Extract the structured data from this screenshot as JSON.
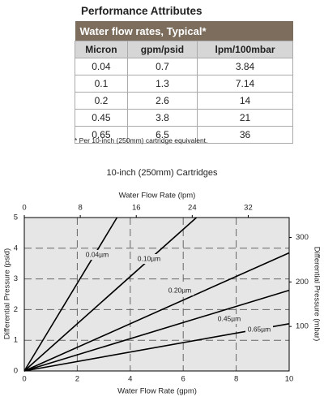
{
  "header": {
    "title": "Performance Attributes"
  },
  "table": {
    "title": "Water flow rates, Typical*",
    "columns": [
      "Micron",
      "gpm/psid",
      "lpm/100mbar"
    ],
    "rows": [
      [
        "0.04",
        "0.7",
        "3.84"
      ],
      [
        "0.1",
        "1.3",
        "7.14"
      ],
      [
        "0.2",
        "2.6",
        "14"
      ],
      [
        "0.45",
        "3.8",
        "21"
      ],
      [
        "0.65",
        "6.5",
        "36"
      ]
    ]
  },
  "footnote": "* Per 10-inch (250mm) cartridge equivalent.",
  "chart_data": {
    "type": "line",
    "title": "10-inch (250mm) Cartridges",
    "x_label": "Water Flow Rate (gpm)",
    "x2_label": "Water Flow Rate (lpm)",
    "y_label": "Differential Pressure (psid)",
    "y2_label": "Differential Pressure (mbar)",
    "xlim": [
      0,
      10
    ],
    "xticks": [
      0,
      2,
      4,
      6,
      8,
      10
    ],
    "x2lim": [
      0,
      37.85
    ],
    "x2ticks": [
      0,
      8,
      16,
      24,
      32
    ],
    "ylim": [
      0,
      5
    ],
    "yticks": [
      0,
      1,
      2,
      3,
      4,
      5
    ],
    "y2lim": [
      0,
      344.7
    ],
    "y2ticks": [
      100,
      200,
      300
    ],
    "grid": true,
    "background": "#e6e6e6",
    "series": [
      {
        "name": "0.04µm",
        "color": "#000000",
        "x": [
          0,
          3.5
        ],
        "values": [
          0,
          5
        ]
      },
      {
        "name": "0.10µm",
        "color": "#000000",
        "x": [
          0,
          6.5
        ],
        "values": [
          0,
          5
        ]
      },
      {
        "name": "0.20µm",
        "color": "#000000",
        "x": [
          0,
          10
        ],
        "values": [
          0,
          3.85
        ]
      },
      {
        "name": "0.45µm",
        "color": "#000000",
        "x": [
          0,
          10
        ],
        "values": [
          0,
          2.63
        ]
      },
      {
        "name": "0.65µm",
        "color": "#000000",
        "x": [
          0,
          10
        ],
        "values": [
          0,
          1.54
        ]
      }
    ]
  }
}
